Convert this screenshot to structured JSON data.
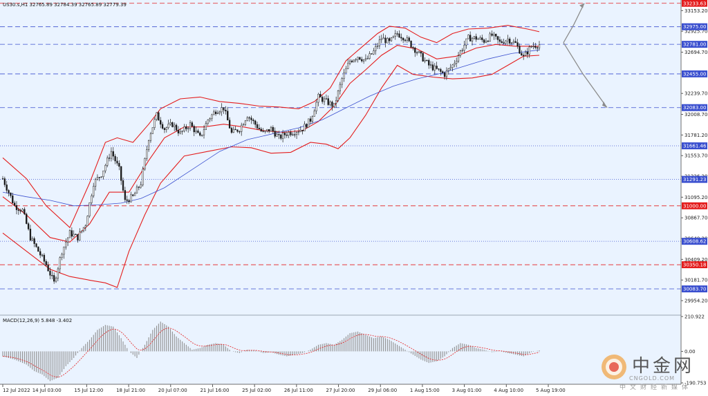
{
  "header": {
    "symbol_info": "US30.s,H1  32765.89 32784.39 32765.89 32779.39"
  },
  "colors": {
    "background": "#eaf3ff",
    "candle": "#1a1a1a",
    "bollinger": "#e41c1c",
    "ma": "#3a4fcf",
    "arrow": "#8c8c8c",
    "level_blue": "#3a4fcf",
    "level_red": "#e41c1c",
    "macd_hist": "#8f8f8f",
    "macd_signal": "#e41c1c"
  },
  "chart_data": {
    "type": "line",
    "title": "US30.s,H1",
    "ohlc_last": {
      "open": 32765.89,
      "high": 32784.39,
      "low": 32765.89,
      "close": 32779.39
    },
    "ylim": [
      29840,
      33270
    ],
    "y_ticks": [
      "33153.20",
      "32925.70",
      "32694.70",
      "32239.70",
      "32008.70",
      "31781.20",
      "31553.70",
      "31326.20",
      "31095.20",
      "30867.70",
      "30640.20",
      "30409.20",
      "30181.70",
      "29954.20"
    ],
    "x_ticks": [
      "12 Jul 2022",
      "14 Jul 03:00",
      "15 Jul 12:00",
      "18 Jul 21:00",
      "20 Jul 07:00",
      "21 Jul 16:00",
      "25 Jul 02:00",
      "26 Jul 11:00",
      "27 Jul 20:00",
      "29 Jul 06:00",
      "1 Aug 15:00",
      "3 Aug 01:00",
      "4 Aug 10:00",
      "5 Aug 19:00"
    ],
    "levels": [
      {
        "label": "33233.63",
        "value": 33233.63,
        "color": "red",
        "style": "dash"
      },
      {
        "label": "32975.00",
        "value": 32975.0,
        "color": "blue",
        "style": "dash"
      },
      {
        "label": "32781.00",
        "value": 32781.0,
        "color": "blue",
        "style": "dash"
      },
      {
        "label": "32455.00",
        "value": 32455.0,
        "color": "blue",
        "style": "dash"
      },
      {
        "label": "32083.00",
        "value": 32083.0,
        "color": "blue",
        "style": "dash"
      },
      {
        "label": "31661.46",
        "value": 31661.46,
        "color": "blue",
        "style": "dot"
      },
      {
        "label": "31291.23",
        "value": 31291.23,
        "color": "blue",
        "style": "dot"
      },
      {
        "label": "31000.00",
        "value": 31000.0,
        "color": "red",
        "style": "dash"
      },
      {
        "label": "30608.62",
        "value": 30608.62,
        "color": "blue",
        "style": "dot"
      },
      {
        "label": "30350.18",
        "value": 30350.18,
        "color": "red",
        "style": "dash"
      },
      {
        "label": "30083.70",
        "value": 30083.7,
        "color": "blue",
        "style": "dash"
      }
    ],
    "price_path": [
      {
        "t": 0,
        "p": 31300
      },
      {
        "t": 6,
        "p": 31000
      },
      {
        "t": 10,
        "p": 30950
      },
      {
        "t": 14,
        "p": 30650
      },
      {
        "t": 18,
        "p": 30500
      },
      {
        "t": 22,
        "p": 30350
      },
      {
        "t": 26,
        "p": 30150
      },
      {
        "t": 30,
        "p": 30500
      },
      {
        "t": 34,
        "p": 30700
      },
      {
        "t": 38,
        "p": 30650
      },
      {
        "t": 42,
        "p": 30800
      },
      {
        "t": 46,
        "p": 31250
      },
      {
        "t": 50,
        "p": 31350
      },
      {
        "t": 55,
        "p": 31600
      },
      {
        "t": 59,
        "p": 31400
      },
      {
        "t": 62,
        "p": 31050
      },
      {
        "t": 66,
        "p": 31100
      },
      {
        "t": 70,
        "p": 31250
      },
      {
        "t": 74,
        "p": 31750
      },
      {
        "t": 78,
        "p": 32000
      },
      {
        "t": 82,
        "p": 31850
      },
      {
        "t": 86,
        "p": 31900
      },
      {
        "t": 90,
        "p": 31800
      },
      {
        "t": 95,
        "p": 31900
      },
      {
        "t": 100,
        "p": 31750
      },
      {
        "t": 104,
        "p": 31950
      },
      {
        "t": 108,
        "p": 32050
      },
      {
        "t": 112,
        "p": 32080
      },
      {
        "t": 116,
        "p": 31800
      },
      {
        "t": 120,
        "p": 31850
      },
      {
        "t": 124,
        "p": 32000
      },
      {
        "t": 128,
        "p": 31900
      },
      {
        "t": 132,
        "p": 31800
      },
      {
        "t": 136,
        "p": 31850
      },
      {
        "t": 140,
        "p": 31750
      },
      {
        "t": 144,
        "p": 31800
      },
      {
        "t": 148,
        "p": 31820
      },
      {
        "t": 152,
        "p": 31850
      },
      {
        "t": 156,
        "p": 31950
      },
      {
        "t": 160,
        "p": 32200
      },
      {
        "t": 164,
        "p": 32150
      },
      {
        "t": 168,
        "p": 32100
      },
      {
        "t": 172,
        "p": 32400
      },
      {
        "t": 176,
        "p": 32600
      },
      {
        "t": 180,
        "p": 32650
      },
      {
        "t": 184,
        "p": 32600
      },
      {
        "t": 188,
        "p": 32700
      },
      {
        "t": 192,
        "p": 32850
      },
      {
        "t": 196,
        "p": 32800
      },
      {
        "t": 200,
        "p": 32900
      },
      {
        "t": 204,
        "p": 32850
      },
      {
        "t": 208,
        "p": 32750
      },
      {
        "t": 212,
        "p": 32650
      },
      {
        "t": 216,
        "p": 32550
      },
      {
        "t": 220,
        "p": 32500
      },
      {
        "t": 224,
        "p": 32450
      },
      {
        "t": 228,
        "p": 32550
      },
      {
        "t": 232,
        "p": 32700
      },
      {
        "t": 236,
        "p": 32850
      },
      {
        "t": 240,
        "p": 32850
      },
      {
        "t": 244,
        "p": 32820
      },
      {
        "t": 248,
        "p": 32880
      },
      {
        "t": 252,
        "p": 32800
      },
      {
        "t": 256,
        "p": 32840
      },
      {
        "t": 260,
        "p": 32790
      },
      {
        "t": 264,
        "p": 32640
      },
      {
        "t": 268,
        "p": 32760
      },
      {
        "t": 272,
        "p": 32779.39
      }
    ],
    "series": [
      {
        "name": "Bollinger upper",
        "values": [
          {
            "t": 0,
            "p": 31530
          },
          {
            "t": 12,
            "p": 31300
          },
          {
            "t": 22,
            "p": 31000
          },
          {
            "t": 34,
            "p": 30760
          },
          {
            "t": 44,
            "p": 31250
          },
          {
            "t": 52,
            "p": 31700
          },
          {
            "t": 58,
            "p": 31750
          },
          {
            "t": 66,
            "p": 31700
          },
          {
            "t": 74,
            "p": 31900
          },
          {
            "t": 80,
            "p": 32070
          },
          {
            "t": 90,
            "p": 32180
          },
          {
            "t": 100,
            "p": 32200
          },
          {
            "t": 110,
            "p": 32150
          },
          {
            "t": 120,
            "p": 32130
          },
          {
            "t": 130,
            "p": 32100
          },
          {
            "t": 140,
            "p": 32090
          },
          {
            "t": 150,
            "p": 32070
          },
          {
            "t": 158,
            "p": 32150
          },
          {
            "t": 166,
            "p": 32300
          },
          {
            "t": 174,
            "p": 32600
          },
          {
            "t": 182,
            "p": 32750
          },
          {
            "t": 190,
            "p": 32900
          },
          {
            "t": 196,
            "p": 32980
          },
          {
            "t": 204,
            "p": 32960
          },
          {
            "t": 212,
            "p": 32860
          },
          {
            "t": 220,
            "p": 32800
          },
          {
            "t": 228,
            "p": 32900
          },
          {
            "t": 236,
            "p": 32950
          },
          {
            "t": 246,
            "p": 32960
          },
          {
            "t": 256,
            "p": 32990
          },
          {
            "t": 266,
            "p": 32950
          },
          {
            "t": 272,
            "p": 32920
          }
        ]
      },
      {
        "name": "Bollinger middle",
        "values": [
          {
            "t": 0,
            "p": 31100
          },
          {
            "t": 12,
            "p": 30900
          },
          {
            "t": 24,
            "p": 30650
          },
          {
            "t": 34,
            "p": 30600
          },
          {
            "t": 44,
            "p": 30800
          },
          {
            "t": 54,
            "p": 31150
          },
          {
            "t": 64,
            "p": 31150
          },
          {
            "t": 74,
            "p": 31500
          },
          {
            "t": 82,
            "p": 31750
          },
          {
            "t": 92,
            "p": 31870
          },
          {
            "t": 102,
            "p": 31870
          },
          {
            "t": 112,
            "p": 31900
          },
          {
            "t": 122,
            "p": 31870
          },
          {
            "t": 132,
            "p": 31830
          },
          {
            "t": 142,
            "p": 31810
          },
          {
            "t": 152,
            "p": 31830
          },
          {
            "t": 160,
            "p": 31930
          },
          {
            "t": 168,
            "p": 32100
          },
          {
            "t": 176,
            "p": 32350
          },
          {
            "t": 184,
            "p": 32500
          },
          {
            "t": 192,
            "p": 32660
          },
          {
            "t": 200,
            "p": 32770
          },
          {
            "t": 210,
            "p": 32730
          },
          {
            "t": 220,
            "p": 32620
          },
          {
            "t": 230,
            "p": 32650
          },
          {
            "t": 240,
            "p": 32740
          },
          {
            "t": 250,
            "p": 32780
          },
          {
            "t": 260,
            "p": 32760
          },
          {
            "t": 272,
            "p": 32760
          }
        ]
      },
      {
        "name": "Bollinger lower",
        "values": [
          {
            "t": 0,
            "p": 30700
          },
          {
            "t": 12,
            "p": 30500
          },
          {
            "t": 24,
            "p": 30300
          },
          {
            "t": 34,
            "p": 30220
          },
          {
            "t": 44,
            "p": 30180
          },
          {
            "t": 52,
            "p": 30150
          },
          {
            "t": 58,
            "p": 30100
          },
          {
            "t": 64,
            "p": 30500
          },
          {
            "t": 72,
            "p": 30900
          },
          {
            "t": 80,
            "p": 31250
          },
          {
            "t": 92,
            "p": 31550
          },
          {
            "t": 104,
            "p": 31600
          },
          {
            "t": 116,
            "p": 31650
          },
          {
            "t": 126,
            "p": 31640
          },
          {
            "t": 136,
            "p": 31580
          },
          {
            "t": 146,
            "p": 31590
          },
          {
            "t": 156,
            "p": 31700
          },
          {
            "t": 164,
            "p": 31680
          },
          {
            "t": 170,
            "p": 31630
          },
          {
            "t": 176,
            "p": 31750
          },
          {
            "t": 184,
            "p": 32000
          },
          {
            "t": 192,
            "p": 32300
          },
          {
            "t": 200,
            "p": 32550
          },
          {
            "t": 208,
            "p": 32450
          },
          {
            "t": 218,
            "p": 32420
          },
          {
            "t": 228,
            "p": 32400
          },
          {
            "t": 238,
            "p": 32410
          },
          {
            "t": 248,
            "p": 32450
          },
          {
            "t": 256,
            "p": 32550
          },
          {
            "t": 264,
            "p": 32650
          },
          {
            "t": 272,
            "p": 32660
          }
        ]
      },
      {
        "name": "Moving average",
        "values": [
          {
            "t": 0,
            "p": 31150
          },
          {
            "t": 12,
            "p": 31100
          },
          {
            "t": 24,
            "p": 31060
          },
          {
            "t": 36,
            "p": 31000
          },
          {
            "t": 48,
            "p": 31010
          },
          {
            "t": 60,
            "p": 31030
          },
          {
            "t": 70,
            "p": 31080
          },
          {
            "t": 82,
            "p": 31200
          },
          {
            "t": 96,
            "p": 31400
          },
          {
            "t": 110,
            "p": 31600
          },
          {
            "t": 124,
            "p": 31730
          },
          {
            "t": 138,
            "p": 31800
          },
          {
            "t": 150,
            "p": 31860
          },
          {
            "t": 162,
            "p": 31950
          },
          {
            "t": 174,
            "p": 32080
          },
          {
            "t": 186,
            "p": 32210
          },
          {
            "t": 198,
            "p": 32320
          },
          {
            "t": 210,
            "p": 32400
          },
          {
            "t": 222,
            "p": 32460
          },
          {
            "t": 234,
            "p": 32540
          },
          {
            "t": 246,
            "p": 32620
          },
          {
            "t": 258,
            "p": 32680
          },
          {
            "t": 272,
            "p": 32720
          }
        ]
      }
    ],
    "projection": {
      "from": {
        "t": 272,
        "p": 32800
      },
      "up_target": 33233.63,
      "down_target": 32083.0
    },
    "macd": {
      "label": "MACD(12,26,9) 5.848 -3.402",
      "ylim": [
        -190.753,
        210.922
      ],
      "y_ticks": [
        "210.922",
        "0.00",
        "-190.753"
      ],
      "histogram": [
        {
          "t": 0,
          "v": -30
        },
        {
          "t": 6,
          "v": -50
        },
        {
          "t": 12,
          "v": -80
        },
        {
          "t": 16,
          "v": -120
        },
        {
          "t": 20,
          "v": -140
        },
        {
          "t": 24,
          "v": -180
        },
        {
          "t": 28,
          "v": -160
        },
        {
          "t": 32,
          "v": -90
        },
        {
          "t": 36,
          "v": -40
        },
        {
          "t": 40,
          "v": 20
        },
        {
          "t": 44,
          "v": 70
        },
        {
          "t": 48,
          "v": 130
        },
        {
          "t": 52,
          "v": 160
        },
        {
          "t": 56,
          "v": 150
        },
        {
          "t": 60,
          "v": 80
        },
        {
          "t": 64,
          "v": 0
        },
        {
          "t": 68,
          "v": -40
        },
        {
          "t": 72,
          "v": 40
        },
        {
          "t": 76,
          "v": 130
        },
        {
          "t": 80,
          "v": 180
        },
        {
          "t": 84,
          "v": 150
        },
        {
          "t": 88,
          "v": 90
        },
        {
          "t": 92,
          "v": 50
        },
        {
          "t": 96,
          "v": 10
        },
        {
          "t": 100,
          "v": 20
        },
        {
          "t": 104,
          "v": 40
        },
        {
          "t": 108,
          "v": 50
        },
        {
          "t": 112,
          "v": 40
        },
        {
          "t": 116,
          "v": 0
        },
        {
          "t": 120,
          "v": -10
        },
        {
          "t": 124,
          "v": 10
        },
        {
          "t": 128,
          "v": 5
        },
        {
          "t": 132,
          "v": -10
        },
        {
          "t": 136,
          "v": -5
        },
        {
          "t": 140,
          "v": -20
        },
        {
          "t": 144,
          "v": -30
        },
        {
          "t": 148,
          "v": -20
        },
        {
          "t": 152,
          "v": -10
        },
        {
          "t": 156,
          "v": 10
        },
        {
          "t": 160,
          "v": 40
        },
        {
          "t": 164,
          "v": 50
        },
        {
          "t": 168,
          "v": 40
        },
        {
          "t": 172,
          "v": 70
        },
        {
          "t": 176,
          "v": 110
        },
        {
          "t": 180,
          "v": 120
        },
        {
          "t": 184,
          "v": 100
        },
        {
          "t": 188,
          "v": 80
        },
        {
          "t": 192,
          "v": 90
        },
        {
          "t": 196,
          "v": 70
        },
        {
          "t": 200,
          "v": 40
        },
        {
          "t": 204,
          "v": 10
        },
        {
          "t": 208,
          "v": -20
        },
        {
          "t": 212,
          "v": -50
        },
        {
          "t": 216,
          "v": -70
        },
        {
          "t": 220,
          "v": -60
        },
        {
          "t": 224,
          "v": -30
        },
        {
          "t": 228,
          "v": 20
        },
        {
          "t": 232,
          "v": 50
        },
        {
          "t": 236,
          "v": 40
        },
        {
          "t": 240,
          "v": 20
        },
        {
          "t": 244,
          "v": 10
        },
        {
          "t": 248,
          "v": -5
        },
        {
          "t": 252,
          "v": 0
        },
        {
          "t": 256,
          "v": -10
        },
        {
          "t": 260,
          "v": -20
        },
        {
          "t": 264,
          "v": -30
        },
        {
          "t": 268,
          "v": -5
        },
        {
          "t": 272,
          "v": 5.848
        }
      ]
    }
  },
  "watermark": {
    "brand_cn": "中金网",
    "brand_en": "CNGOLD.COM",
    "brand_sub": "中文财经新媒体"
  }
}
